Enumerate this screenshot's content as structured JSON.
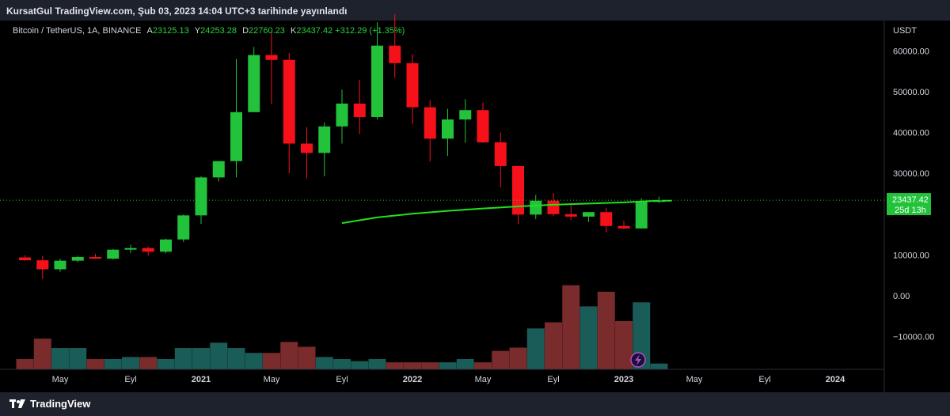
{
  "header": {
    "title": "KursatGul TradingView.com, Şub 03, 2023 14:04 UTC+3 tarihinde yayınlandı"
  },
  "legend": {
    "symbol": "Bitcoin / TetherUS, 1A, BINANCE",
    "a_label": "A",
    "a_value": "23125.13",
    "y_label": "Y",
    "y_value": "24253.28",
    "d_label": "D",
    "d_value": "22760.23",
    "k_label": "K",
    "k_value": "23437.42",
    "change": "+312.29 (+1.35%)"
  },
  "branding": {
    "logo_text": "TradingView"
  },
  "colors": {
    "up": "#22c23a",
    "down": "#f5101a",
    "vol_up": "#1a5c57",
    "vol_down": "#7a2b2b",
    "ma": "#1fe21f",
    "background": "#000000",
    "panel": "#1e222d"
  },
  "chart_data": {
    "type": "candlestick",
    "currency": "USDT",
    "price_ticks": [
      "60000.00",
      "50000.00",
      "40000.00",
      "30000.00",
      "10000.00",
      "0.00",
      "−10000.00"
    ],
    "x_ticks": [
      "May",
      "Eyl",
      "2021",
      "May",
      "Eyl",
      "2022",
      "May",
      "Eyl",
      "2023",
      "May",
      "Eyl",
      "2024"
    ],
    "last_price": "23437.42",
    "countdown": "25d 13h",
    "candles": [
      {
        "o": 9400,
        "h": 9900,
        "l": 8600,
        "c": 8700
      },
      {
        "o": 8700,
        "h": 9800,
        "l": 4100,
        "c": 6500
      },
      {
        "o": 6500,
        "h": 9100,
        "l": 5900,
        "c": 8600
      },
      {
        "o": 8600,
        "h": 9800,
        "l": 8200,
        "c": 9500
      },
      {
        "o": 9500,
        "h": 10300,
        "l": 9000,
        "c": 9100
      },
      {
        "o": 9100,
        "h": 11500,
        "l": 8900,
        "c": 11300
      },
      {
        "o": 11300,
        "h": 12500,
        "l": 10500,
        "c": 11700
      },
      {
        "o": 11700,
        "h": 12100,
        "l": 9900,
        "c": 10800
      },
      {
        "o": 10800,
        "h": 14000,
        "l": 10400,
        "c": 13800
      },
      {
        "o": 13800,
        "h": 19900,
        "l": 13200,
        "c": 19700
      },
      {
        "o": 19700,
        "h": 29300,
        "l": 17600,
        "c": 29000
      },
      {
        "o": 29000,
        "h": 33000,
        "l": 28000,
        "c": 33000
      },
      {
        "o": 33000,
        "h": 58000,
        "l": 29000,
        "c": 45000
      },
      {
        "o": 45000,
        "h": 61000,
        "l": 45000,
        "c": 59000
      },
      {
        "o": 59000,
        "h": 64800,
        "l": 47000,
        "c": 57800
      },
      {
        "o": 57800,
        "h": 59500,
        "l": 30000,
        "c": 37300
      },
      {
        "o": 37300,
        "h": 41300,
        "l": 28800,
        "c": 35000
      },
      {
        "o": 35000,
        "h": 42500,
        "l": 29300,
        "c": 41500
      },
      {
        "o": 41500,
        "h": 50500,
        "l": 37300,
        "c": 47100
      },
      {
        "o": 47100,
        "h": 52900,
        "l": 39600,
        "c": 43800
      },
      {
        "o": 43800,
        "h": 67000,
        "l": 43200,
        "c": 61300
      },
      {
        "o": 61300,
        "h": 69000,
        "l": 53400,
        "c": 57000
      },
      {
        "o": 57000,
        "h": 59200,
        "l": 42000,
        "c": 46200
      },
      {
        "o": 46200,
        "h": 48000,
        "l": 32900,
        "c": 38500
      },
      {
        "o": 38500,
        "h": 45800,
        "l": 34300,
        "c": 43200
      },
      {
        "o": 43200,
        "h": 48200,
        "l": 37500,
        "c": 45500
      },
      {
        "o": 45500,
        "h": 47400,
        "l": 37400,
        "c": 37600
      },
      {
        "o": 37600,
        "h": 40000,
        "l": 26600,
        "c": 31800
      },
      {
        "o": 31800,
        "h": 31800,
        "l": 17600,
        "c": 19900
      },
      {
        "o": 19900,
        "h": 24700,
        "l": 18800,
        "c": 23300
      },
      {
        "o": 23300,
        "h": 25200,
        "l": 19500,
        "c": 20000
      },
      {
        "o": 20000,
        "h": 22800,
        "l": 18500,
        "c": 19400
      },
      {
        "o": 19400,
        "h": 20500,
        "l": 18100,
        "c": 20500
      },
      {
        "o": 20500,
        "h": 21500,
        "l": 15500,
        "c": 17100
      },
      {
        "o": 17100,
        "h": 18400,
        "l": 16300,
        "c": 16500
      },
      {
        "o": 16500,
        "h": 23900,
        "l": 16500,
        "c": 23100
      },
      {
        "o": 23100,
        "h": 24300,
        "l": 22700,
        "c": 23400
      }
    ],
    "ma": [
      {
        "i": 18,
        "v": 17800
      },
      {
        "i": 20,
        "v": 19200
      },
      {
        "i": 22,
        "v": 20100
      },
      {
        "i": 24,
        "v": 20800
      },
      {
        "i": 26,
        "v": 21400
      },
      {
        "i": 28,
        "v": 21900
      },
      {
        "i": 30,
        "v": 22300
      },
      {
        "i": 32,
        "v": 22600
      },
      {
        "i": 34,
        "v": 22900
      },
      {
        "i": 35,
        "v": 23100
      },
      {
        "i": 36,
        "v": 23300
      }
    ],
    "volume_series": [
      {
        "v": -15500,
        "up": false
      },
      {
        "v": -10500,
        "up": false
      },
      {
        "v": -12800,
        "up": true
      },
      {
        "v": -12800,
        "up": true
      },
      {
        "v": -15500,
        "up": false
      },
      {
        "v": -15500,
        "up": true
      },
      {
        "v": -15000,
        "up": true
      },
      {
        "v": -15000,
        "up": false
      },
      {
        "v": -15500,
        "up": true
      },
      {
        "v": -12800,
        "up": true
      },
      {
        "v": -12800,
        "up": true
      },
      {
        "v": -11500,
        "up": true
      },
      {
        "v": -12800,
        "up": true
      },
      {
        "v": -14000,
        "up": true
      },
      {
        "v": -14000,
        "up": false
      },
      {
        "v": -11300,
        "up": false
      },
      {
        "v": -12500,
        "up": false
      },
      {
        "v": -15000,
        "up": true
      },
      {
        "v": -15500,
        "up": true
      },
      {
        "v": -16000,
        "up": true
      },
      {
        "v": -15500,
        "up": true
      },
      {
        "v": -16300,
        "up": false
      },
      {
        "v": -16300,
        "up": false
      },
      {
        "v": -16300,
        "up": false
      },
      {
        "v": -16300,
        "up": true
      },
      {
        "v": -15500,
        "up": true
      },
      {
        "v": -16300,
        "up": false
      },
      {
        "v": -13500,
        "up": false
      },
      {
        "v": -12700,
        "up": false
      },
      {
        "v": -8000,
        "up": true
      },
      {
        "v": -6500,
        "up": false
      },
      {
        "v": 2600,
        "up": false
      },
      {
        "v": -2600,
        "up": true
      },
      {
        "v": 1000,
        "up": false
      },
      {
        "v": -6200,
        "up": false
      },
      {
        "v": -1600,
        "up": true
      },
      {
        "v": -16600,
        "up": true
      }
    ]
  }
}
